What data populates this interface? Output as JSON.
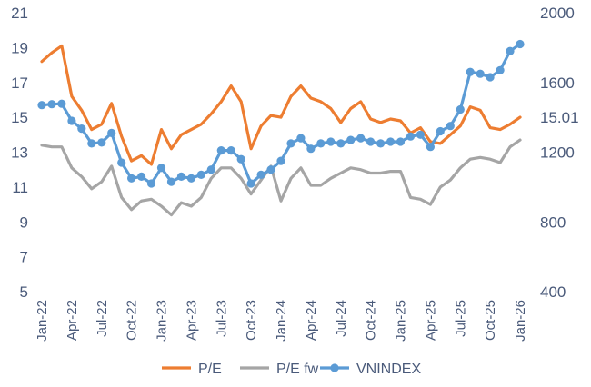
{
  "chart_data": {
    "type": "line",
    "title": "",
    "x_tick_labels": [
      "Jan-22",
      "Apr-22",
      "Jul-22",
      "Oct-22",
      "Jan-23",
      "Apr-23",
      "Jul-23",
      "Oct-23",
      "Jan-24",
      "Apr-24",
      "Jul-24",
      "Oct-24",
      "Jan-25",
      "Apr-25",
      "Jul-25",
      "Oct-25",
      "Jan-26"
    ],
    "x": [
      "Jan-22",
      "Feb-22",
      "Mar-22",
      "Apr-22",
      "May-22",
      "Jun-22",
      "Jul-22",
      "Aug-22",
      "Sep-22",
      "Oct-22",
      "Nov-22",
      "Dec-22",
      "Jan-23",
      "Feb-23",
      "Mar-23",
      "Apr-23",
      "May-23",
      "Jun-23",
      "Jul-23",
      "Aug-23",
      "Sep-23",
      "Oct-23",
      "Nov-23",
      "Dec-23",
      "Jan-24",
      "Feb-24",
      "Mar-24",
      "Apr-24",
      "May-24",
      "Jun-24",
      "Jul-24",
      "Aug-24",
      "Sep-24",
      "Oct-24",
      "Nov-24",
      "Dec-24",
      "Jan-25",
      "Feb-25",
      "Mar-25",
      "Apr-25",
      "May-25",
      "Jun-25",
      "Jul-25",
      "Aug-25",
      "Sep-25",
      "Oct-25",
      "Nov-25",
      "Dec-25",
      "Jan-26"
    ],
    "y_left": {
      "ylim": [
        5,
        21
      ],
      "ticks": [
        "5",
        "7",
        "9",
        "11",
        "13",
        "15",
        "17",
        "19",
        "21"
      ]
    },
    "y_right": {
      "ylim": [
        400,
        2000
      ],
      "ticks": [
        "400",
        "800",
        "1200",
        "1600",
        "2000"
      ],
      "marked_label": "15.01",
      "marked_value": 15.01
    },
    "series": [
      {
        "name": "P/E",
        "axis": "left",
        "color": "#ed7d31",
        "values": [
          18.2,
          18.7,
          19.1,
          16.2,
          15.4,
          14.3,
          14.6,
          15.8,
          13.9,
          12.5,
          12.8,
          12.3,
          14.3,
          13.2,
          14.0,
          14.3,
          14.6,
          15.2,
          15.9,
          16.8,
          15.9,
          13.2,
          14.5,
          15.1,
          15.0,
          16.2,
          16.8,
          16.1,
          15.9,
          15.5,
          14.7,
          15.5,
          15.9,
          14.9,
          14.7,
          14.9,
          14.8,
          14.1,
          14.4,
          13.6,
          13.5,
          14.0,
          14.5,
          15.6,
          15.4,
          14.4,
          14.3,
          14.6,
          15.0
        ]
      },
      {
        "name": "P/E fw",
        "axis": "left",
        "color": "#a5a5a5",
        "values": [
          13.4,
          13.3,
          13.3,
          12.1,
          11.6,
          10.9,
          11.3,
          12.2,
          10.4,
          9.7,
          10.2,
          10.3,
          9.9,
          9.4,
          10.1,
          9.9,
          10.4,
          11.5,
          12.1,
          12.1,
          11.5,
          10.6,
          11.4,
          12.2,
          10.2,
          11.5,
          12.1,
          11.1,
          11.1,
          11.5,
          11.8,
          12.1,
          12.0,
          11.8,
          11.8,
          11.9,
          11.9,
          10.4,
          10.3,
          10.0,
          11.0,
          11.4,
          12.1,
          12.6,
          12.7,
          12.6,
          12.4,
          13.3,
          13.7
        ]
      },
      {
        "name": "VNINDEX",
        "axis": "right",
        "color": "#5b9bd5",
        "values": [
          1470,
          1475,
          1478,
          1380,
          1335,
          1250,
          1255,
          1310,
          1140,
          1050,
          1060,
          1020,
          1110,
          1030,
          1060,
          1050,
          1070,
          1100,
          1210,
          1210,
          1160,
          1020,
          1070,
          1100,
          1150,
          1250,
          1280,
          1220,
          1250,
          1260,
          1250,
          1270,
          1280,
          1260,
          1250,
          1260,
          1260,
          1290,
          1300,
          1230,
          1320,
          1350,
          1445,
          1660,
          1650,
          1630,
          1670,
          1780,
          1820
        ]
      }
    ],
    "legend_position": "bottom",
    "grid": false
  }
}
